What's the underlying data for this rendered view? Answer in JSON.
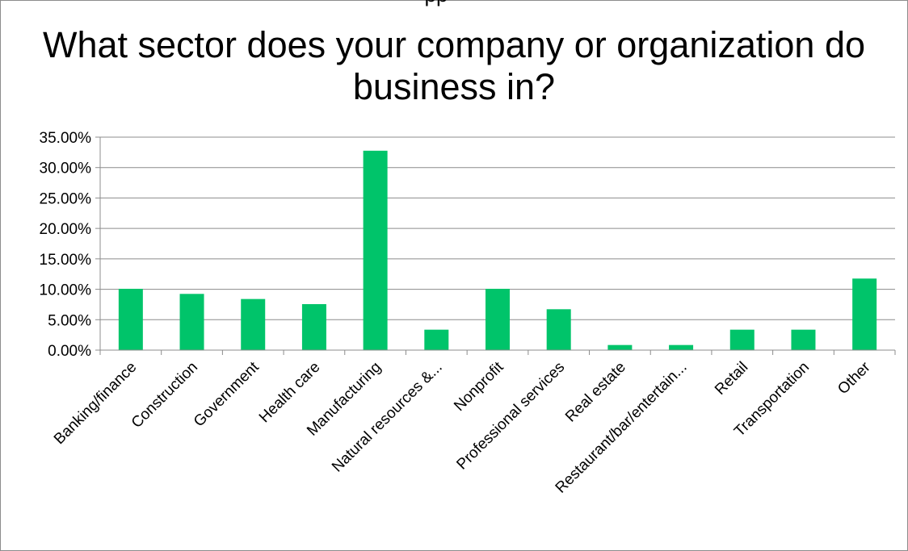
{
  "chart_data": {
    "type": "bar",
    "title": "What sector does your company or organization do business in?",
    "xlabel": "",
    "ylabel": "",
    "ylim": [
      0,
      0.35
    ],
    "yticks": [
      "0.00%",
      "5.00%",
      "10.00%",
      "15.00%",
      "20.00%",
      "25.00%",
      "30.00%",
      "35.00%"
    ],
    "grid": true,
    "legend": "none",
    "bar_color": "#00c46a",
    "categories": [
      "Banking/finance",
      "Construction",
      "Government",
      "Health care",
      "Manufacturing",
      "Natural resources &...",
      "Nonprofit",
      "Professional services",
      "Real estate",
      "Restaurant/bar/entertain...",
      "Retail",
      "Transportation",
      "Other"
    ],
    "values": [
      0.1008,
      0.0924,
      0.084,
      0.0756,
      0.3277,
      0.0336,
      0.1008,
      0.0672,
      0.0084,
      0.0084,
      0.0336,
      0.0336,
      0.1176
    ]
  },
  "header": {
    "cropped_text": "pp"
  }
}
